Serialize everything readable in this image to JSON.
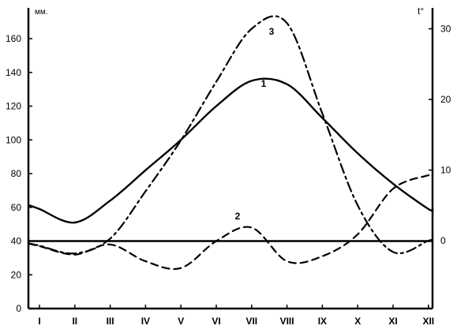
{
  "chart_data": {
    "type": "line",
    "left_unit": "мм.",
    "right_unit": "t°",
    "categories": [
      "I",
      "II",
      "III",
      "IV",
      "V",
      "VI",
      "VII",
      "VIII",
      "IX",
      "X",
      "XI",
      "XII"
    ],
    "left_axis": {
      "range": [
        0,
        170
      ],
      "ticks": [
        0,
        20,
        40,
        60,
        80,
        100,
        120,
        140,
        160
      ]
    },
    "right_axis": {
      "range": [
        -10,
        33
      ],
      "ticks": [
        0,
        10,
        20,
        30
      ]
    },
    "series": [
      {
        "name": "1",
        "axis": "left",
        "style": "solid",
        "values": [
          59,
          51,
          64,
          82,
          100,
          120,
          135,
          133,
          113,
          92,
          74,
          59
        ]
      },
      {
        "name": "2",
        "axis": "left",
        "style": "dashed",
        "values": [
          37,
          32,
          38,
          28,
          24,
          40,
          48,
          28,
          31,
          44,
          71,
          79
        ]
      },
      {
        "name": "3",
        "axis": "right",
        "style": "dash-dot",
        "values": [
          -0.7,
          -1.8,
          0.3,
          7,
          14.2,
          22.5,
          30,
          30.8,
          18,
          5,
          -1.6,
          0
        ]
      }
    ],
    "baseline": 40,
    "annotations": [
      "1",
      "2",
      "3"
    ],
    "grid": false,
    "legend": "none"
  }
}
